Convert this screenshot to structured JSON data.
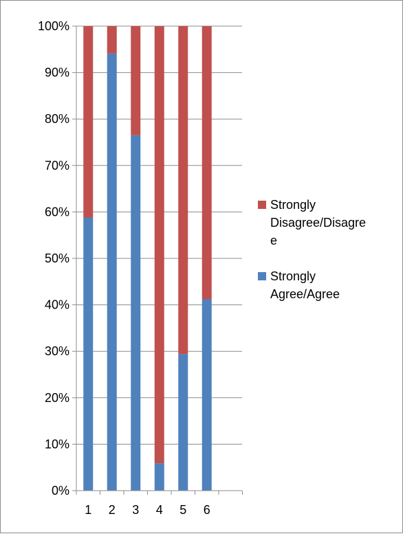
{
  "chart_data": {
    "type": "bar",
    "stacked": true,
    "percent": true,
    "categories": [
      "1",
      "2",
      "3",
      "4",
      "5",
      "6"
    ],
    "series": [
      {
        "name": "Strongly Agree/Agree",
        "values": [
          58.8,
          94.1,
          76.5,
          5.9,
          29.4,
          41.2
        ],
        "color": "#4f81bd"
      },
      {
        "name": "Strongly Disagree/Disagree",
        "values": [
          41.2,
          5.9,
          23.5,
          94.1,
          70.6,
          58.8
        ],
        "color": "#c0504d"
      }
    ],
    "y_ticks": [
      "0%",
      "10%",
      "20%",
      "30%",
      "40%",
      "50%",
      "60%",
      "70%",
      "80%",
      "90%",
      "100%"
    ],
    "ylim": [
      0,
      100
    ],
    "grid": true,
    "legend_position": "right",
    "legend_labels": [
      {
        "series": "Strongly Disagree/Disagree",
        "lines": [
          "Strongly",
          "Disagree/Disagre",
          "e"
        ]
      },
      {
        "series": "Strongly Agree/Agree",
        "lines": [
          "Strongly",
          "Agree/Agree"
        ]
      }
    ]
  }
}
